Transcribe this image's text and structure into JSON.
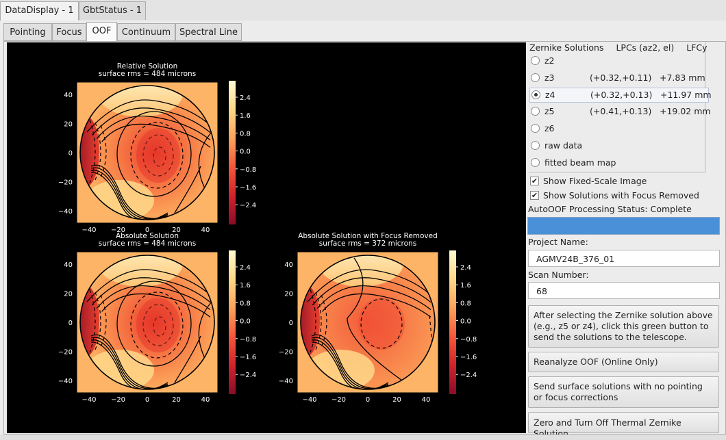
{
  "main_tabs": [
    {
      "label": "DataDisplay - 1",
      "active": true
    },
    {
      "label": "GbtStatus - 1",
      "active": false
    }
  ],
  "sub_tabs": [
    {
      "label": "Pointing",
      "active": false
    },
    {
      "label": "Focus",
      "active": false
    },
    {
      "label": "OOF",
      "active": true
    },
    {
      "label": "Continuum",
      "active": false
    },
    {
      "label": "Spectral Line",
      "active": false
    }
  ],
  "plots": {
    "relative": {
      "title": "Relative Solution",
      "subtitle": "surface rms = 484 microns"
    },
    "absolute": {
      "title": "Absolute Solution",
      "subtitle": "surface rms = 484 microns"
    },
    "focus_removed": {
      "title": "Absolute Solution with Focus Removed",
      "subtitle": "surface rms = 372 microns"
    },
    "y_ticks": [
      "40",
      "20",
      "0",
      "−20",
      "−40"
    ],
    "x_ticks": [
      "−40",
      "−20",
      "0",
      "20",
      "40"
    ],
    "colorbar_ticks": [
      "2.4",
      "1.6",
      "0.8",
      "0.0",
      "−0.8",
      "−1.6",
      "−2.4"
    ],
    "colormap": [
      "#fffbd0",
      "#fed889",
      "#fca35a",
      "#f5573a",
      "#d0232b",
      "#8a0c27"
    ]
  },
  "zernike": {
    "header": {
      "solutions": "Zernike Solutions",
      "lpcs": "LPCs (az2, el)",
      "lfcy": "LFCy"
    },
    "rows": [
      {
        "label": "z2",
        "lpc": "",
        "lfc": "",
        "selected": false
      },
      {
        "label": "z3",
        "lpc": "(+0.32,+0.11)",
        "lfc": "+7.83 mm",
        "selected": false
      },
      {
        "label": "z4",
        "lpc": "(+0.32,+0.13)",
        "lfc": "+11.97 mm",
        "selected": true
      },
      {
        "label": "z5",
        "lpc": "(+0.41,+0.13)",
        "lfc": "+19.02 mm",
        "selected": false
      },
      {
        "label": "z6",
        "lpc": "",
        "lfc": "",
        "selected": false
      },
      {
        "label": "raw data",
        "lpc": "",
        "lfc": "",
        "selected": false
      },
      {
        "label": "fitted beam map",
        "lpc": "",
        "lfc": "",
        "selected": false
      }
    ]
  },
  "options": {
    "fixed_scale": {
      "label": "Show Fixed-Scale Image",
      "checked": true
    },
    "focus_removed": {
      "label": "Show Solutions with Focus Removed",
      "checked": true
    }
  },
  "status": {
    "text": "AutoOOF Processing Status: Complete",
    "progress": 1.0
  },
  "project": {
    "label": "Project Name:",
    "value": "AGMV24B_376_01"
  },
  "scan": {
    "label": "Scan Number:",
    "value": "68"
  },
  "buttons": {
    "send_solutions": "After selecting the Zernike solution above\n(e.g., z5 or z4), click this green button to\nsend the solutions to the telescope.",
    "reanalyze": "Reanalyze OOF (Online Only)",
    "send_surface": "Send surface solutions with no pointing\n or focus corrections",
    "zero_thermal": "Zero and Turn Off Thermal Zernike Solution"
  }
}
